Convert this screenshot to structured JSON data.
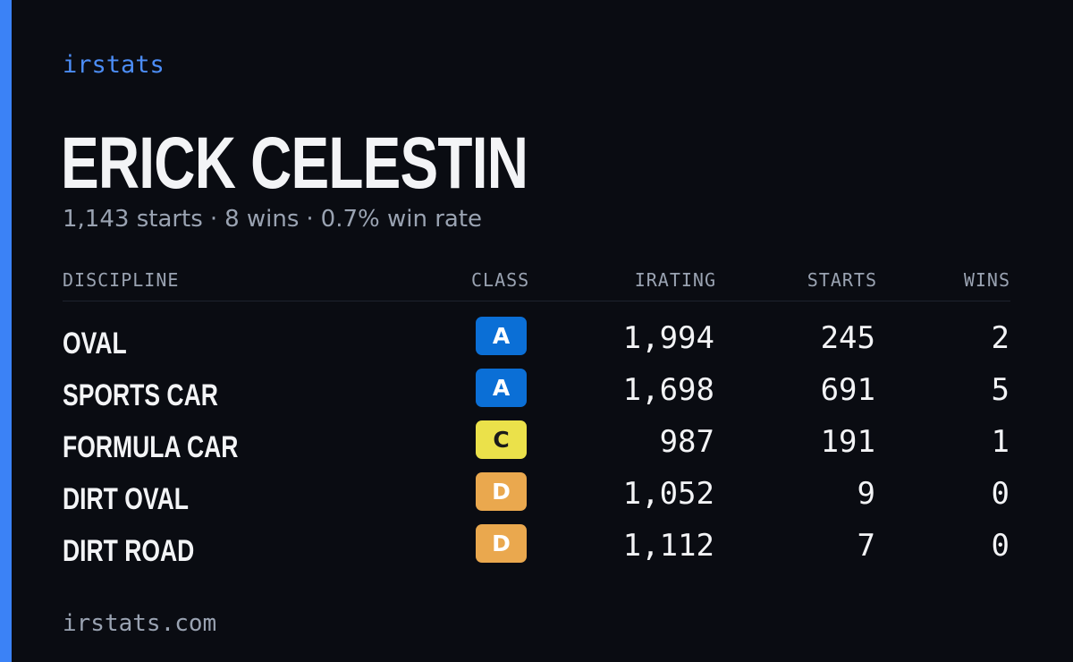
{
  "brand": "irstats",
  "driver": {
    "name": "ERICK CELESTIN",
    "starts": "1,143 starts",
    "wins": "8 wins",
    "win_rate": "0.7% win rate",
    "separator": "·"
  },
  "table": {
    "headers": {
      "discipline": "DISCIPLINE",
      "class": "CLASS",
      "irating": "IRATING",
      "starts": "STARTS",
      "wins": "WINS"
    },
    "rows": [
      {
        "discipline": "OVAL",
        "class": "A",
        "irating": "1,994",
        "starts": "245",
        "wins": "2",
        "badge_bg": "#0b6fd6",
        "badge_fg": "#ffffff"
      },
      {
        "discipline": "SPORTS CAR",
        "class": "A",
        "irating": "1,698",
        "starts": "691",
        "wins": "5",
        "badge_bg": "#0b6fd6",
        "badge_fg": "#ffffff"
      },
      {
        "discipline": "FORMULA CAR",
        "class": "C",
        "irating": "987",
        "starts": "191",
        "wins": "1",
        "badge_bg": "#ebe14a",
        "badge_fg": "#1a1a1a"
      },
      {
        "discipline": "DIRT OVAL",
        "class": "D",
        "irating": "1,052",
        "starts": "9",
        "wins": "0",
        "badge_bg": "#eaa84e",
        "badge_fg": "#ffffff"
      },
      {
        "discipline": "DIRT ROAD",
        "class": "D",
        "irating": "1,112",
        "starts": "7",
        "wins": "0",
        "badge_bg": "#eaa84e",
        "badge_fg": "#ffffff"
      }
    ]
  },
  "footer": "irstats.com",
  "colors": {
    "background": "#0a0c12",
    "accent": "#3b82f6",
    "text": "#f3f4f6",
    "muted": "#9aa3b2"
  }
}
